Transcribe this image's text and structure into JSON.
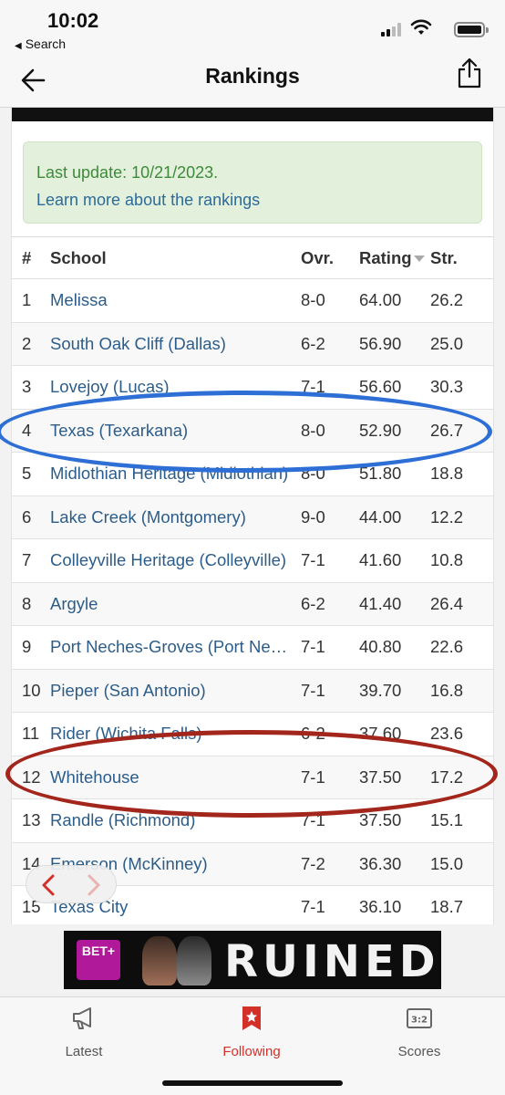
{
  "status_bar": {
    "time": "10:02",
    "back_app": "Search"
  },
  "nav": {
    "title": "Rankings"
  },
  "notice": {
    "last_update": "Last update: 10/21/2023.",
    "learn_more": "Learn more about the rankings"
  },
  "table": {
    "headers": {
      "num": "#",
      "school": "School",
      "ovr": "Ovr.",
      "rating": "Rating",
      "str": "Str."
    },
    "rows": [
      {
        "num": "1",
        "school": "Melissa",
        "ovr": "8-0",
        "rating": "64.00",
        "str": "26.2"
      },
      {
        "num": "2",
        "school": "South Oak Cliff (Dallas)",
        "ovr": "6-2",
        "rating": "56.90",
        "str": "25.0"
      },
      {
        "num": "3",
        "school": "Lovejoy (Lucas)",
        "ovr": "7-1",
        "rating": "56.60",
        "str": "30.3"
      },
      {
        "num": "4",
        "school": "Texas (Texarkana)",
        "ovr": "8-0",
        "rating": "52.90",
        "str": "26.7"
      },
      {
        "num": "5",
        "school": "Midlothian Heritage (Midlothian)",
        "ovr": "8-0",
        "rating": "51.80",
        "str": "18.8"
      },
      {
        "num": "6",
        "school": "Lake Creek (Montgomery)",
        "ovr": "9-0",
        "rating": "44.00",
        "str": "12.2"
      },
      {
        "num": "7",
        "school": "Colleyville Heritage (Colleyville)",
        "ovr": "7-1",
        "rating": "41.60",
        "str": "10.8"
      },
      {
        "num": "8",
        "school": "Argyle",
        "ovr": "6-2",
        "rating": "41.40",
        "str": "26.4"
      },
      {
        "num": "9",
        "school": "Port Neches-Groves (Port Neches)",
        "ovr": "7-1",
        "rating": "40.80",
        "str": "22.6"
      },
      {
        "num": "10",
        "school": "Pieper (San Antonio)",
        "ovr": "7-1",
        "rating": "39.70",
        "str": "16.8"
      },
      {
        "num": "11",
        "school": "Rider (Wichita Falls)",
        "ovr": "6-2",
        "rating": "37.60",
        "str": "23.6"
      },
      {
        "num": "12",
        "school": "Whitehouse",
        "ovr": "7-1",
        "rating": "37.50",
        "str": "17.2"
      },
      {
        "num": "13",
        "school": "Randle (Richmond)",
        "ovr": "7-1",
        "rating": "37.50",
        "str": "15.1"
      },
      {
        "num": "14",
        "school": "Emerson (McKinney)",
        "ovr": "7-2",
        "rating": "36.30",
        "str": "15.0"
      },
      {
        "num": "15",
        "school": "Texas City",
        "ovr": "7-1",
        "rating": "36.10",
        "str": "18.7"
      }
    ]
  },
  "ad": {
    "logo": "BET+",
    "text": "RUINED"
  },
  "tabs": [
    {
      "label": "Latest",
      "icon": "megaphone-icon"
    },
    {
      "label": "Following",
      "icon": "star-bookmark-icon"
    },
    {
      "label": "Scores",
      "icon": "scoreboard-icon"
    }
  ],
  "colors": {
    "link": "#2c5d8a",
    "notice_bg": "#e2f0dc",
    "notice_text": "#3e8a3a",
    "active_tab": "#d3302a",
    "highlight_blue": "#2e6fd6",
    "highlight_red": "#a3261c"
  }
}
